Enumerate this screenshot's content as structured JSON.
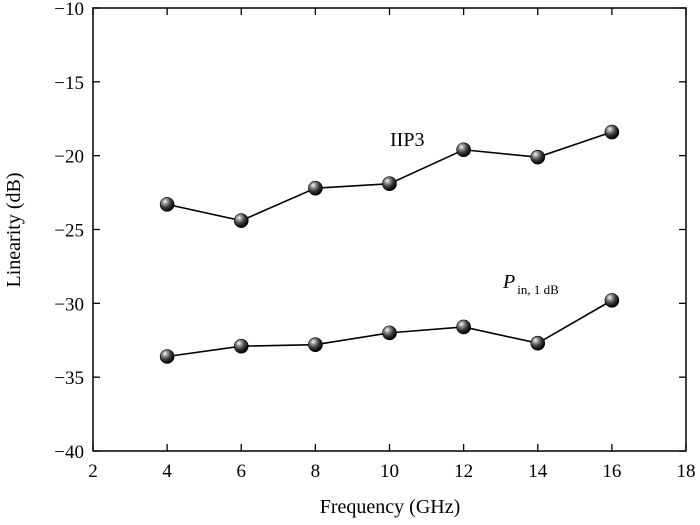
{
  "chart_data": {
    "type": "line",
    "xlabel": "Frequency (GHz)",
    "ylabel": "Linearity (dB)",
    "xlim": [
      2,
      18
    ],
    "ylim": [
      -40,
      -10
    ],
    "xticks": [
      2,
      4,
      6,
      8,
      10,
      12,
      14,
      16,
      18
    ],
    "yticks": [
      -40,
      -35,
      -30,
      -25,
      -20,
      -15,
      -10
    ],
    "xtick_labels": [
      "2",
      "4",
      "6",
      "8",
      "10",
      "12",
      "14",
      "16",
      "18"
    ],
    "ytick_labels": [
      "−40",
      "−35",
      "−30",
      "−25",
      "−20",
      "−15",
      "−10"
    ],
    "grid": false,
    "legend": "none",
    "marker": "sphere",
    "line_color": "#000000",
    "x": [
      4,
      6,
      8,
      10,
      12,
      14,
      16
    ],
    "series": [
      {
        "name": "IIP3",
        "label_main": "IIP3",
        "label_sub": "",
        "values": [
          -23.3,
          -24.4,
          -22.2,
          -21.9,
          -19.6,
          -20.1,
          -18.4
        ]
      },
      {
        "name": "Pin, 1 dB",
        "label_main": "P",
        "label_sub": "in, 1 dB",
        "values": [
          -33.6,
          -32.9,
          -32.8,
          -32.0,
          -31.6,
          -32.7,
          -29.8
        ]
      }
    ]
  }
}
